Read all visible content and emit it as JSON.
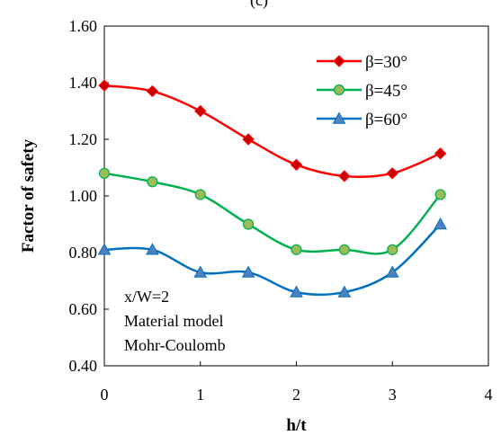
{
  "panel_label": "(c)",
  "chart_data": {
    "type": "line",
    "xlabel": "h/t",
    "ylabel": "Factor of safety",
    "xlim": [
      0,
      4
    ],
    "ylim": [
      0.4,
      1.6
    ],
    "x_ticks": [
      "0",
      "1",
      "2",
      "3",
      "4"
    ],
    "y_ticks": [
      "0.40",
      "0.60",
      "0.80",
      "1.00",
      "1.20",
      "1.40",
      "1.60"
    ],
    "grid": false,
    "legend_position": "top-right",
    "x": [
      0,
      0.5,
      1,
      1.5,
      2,
      2.5,
      3,
      3.5
    ],
    "series": [
      {
        "name": "β=30°",
        "color": "#ff0000",
        "marker": "diamond",
        "marker_fill": "#cc0000",
        "values": [
          1.39,
          1.37,
          1.3,
          1.2,
          1.11,
          1.07,
          1.08,
          1.15
        ]
      },
      {
        "name": "β=45°",
        "color": "#00b050",
        "marker": "circle",
        "marker_fill": "#9bbb59",
        "values": [
          1.08,
          1.05,
          1.005,
          0.9,
          0.81,
          0.81,
          0.81,
          1.005
        ]
      },
      {
        "name": "β=60°",
        "color": "#0070c0",
        "marker": "triangle",
        "marker_fill": "#4f81bd",
        "values": [
          0.81,
          0.81,
          0.73,
          0.73,
          0.66,
          0.66,
          0.73,
          0.9
        ]
      }
    ],
    "annotations": [
      "x/W=2",
      "Material model",
      "Mohr-Coulomb"
    ]
  }
}
